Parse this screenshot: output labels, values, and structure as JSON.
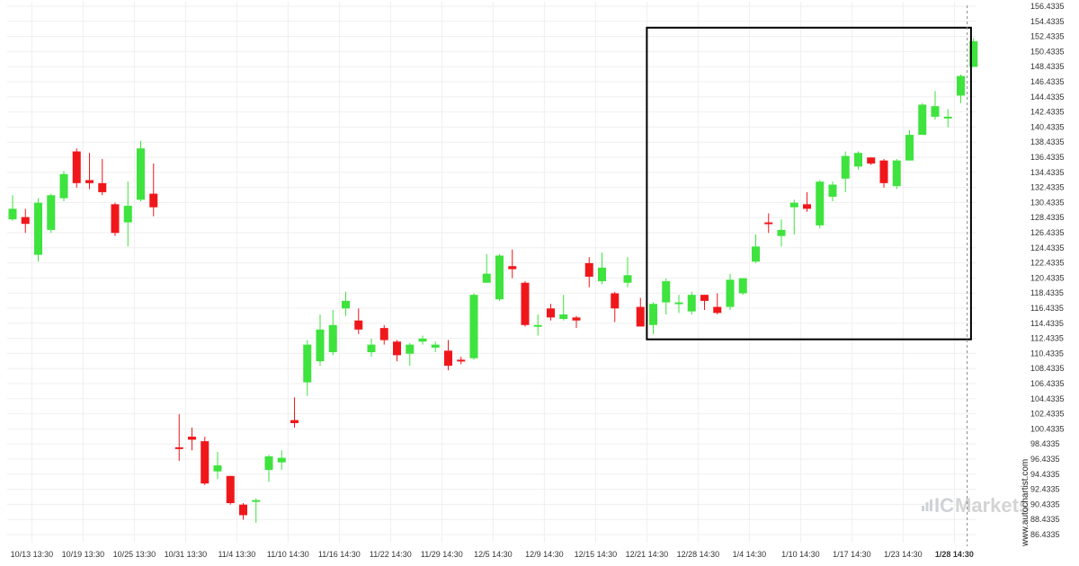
{
  "chart_data": {
    "type": "candlestick",
    "y_axis": {
      "side": "right",
      "min": 85.4335,
      "max": 157.4335,
      "tick_labels": [
        "156.4335",
        "154.4335",
        "152.4335",
        "150.4335",
        "148.4335",
        "146.4335",
        "144.4335",
        "142.4335",
        "140.4335",
        "138.4335",
        "136.4335",
        "134.4335",
        "132.4335",
        "130.4335",
        "128.4335",
        "126.4335",
        "124.4335",
        "122.4335",
        "120.4335",
        "118.4335",
        "116.4335",
        "114.4335",
        "112.4335",
        "110.4335",
        "108.4335",
        "106.4335",
        "104.4335",
        "102.4335",
        "100.4335",
        "98.4335",
        "96.4335",
        "94.4335",
        "92.4335",
        "90.4335",
        "88.4335",
        "86.4335"
      ]
    },
    "x_axis": {
      "tick_labels": [
        {
          "label": "10/13 13:30",
          "bar": 1.5,
          "bold": false
        },
        {
          "label": "10/19 13:30",
          "bar": 5.5,
          "bold": false
        },
        {
          "label": "10/25 13:30",
          "bar": 9.5,
          "bold": false
        },
        {
          "label": "10/31 13:30",
          "bar": 13.5,
          "bold": false
        },
        {
          "label": "11/4 13:30",
          "bar": 17.5,
          "bold": false
        },
        {
          "label": "11/10 14:30",
          "bar": 21.5,
          "bold": false
        },
        {
          "label": "11/16 14:30",
          "bar": 25.5,
          "bold": false
        },
        {
          "label": "11/22 14:30",
          "bar": 29.5,
          "bold": false
        },
        {
          "label": "11/29 14:30",
          "bar": 33.5,
          "bold": false
        },
        {
          "label": "12/5 14:30",
          "bar": 37.5,
          "bold": false
        },
        {
          "label": "12/9 14:30",
          "bar": 41.5,
          "bold": false
        },
        {
          "label": "12/15 14:30",
          "bar": 45.5,
          "bold": false
        },
        {
          "label": "12/21 14:30",
          "bar": 49.5,
          "bold": false
        },
        {
          "label": "12/28 14:30",
          "bar": 53.5,
          "bold": false
        },
        {
          "label": "1/4 14:30",
          "bar": 57.5,
          "bold": false
        },
        {
          "label": "1/10 14:30",
          "bar": 61.5,
          "bold": false
        },
        {
          "label": "1/17 14:30",
          "bar": 65.5,
          "bold": false
        },
        {
          "label": "1/23 14:30",
          "bar": 69.5,
          "bold": false
        },
        {
          "label": "1/28 14:30",
          "bar": 73.5,
          "bold": true
        }
      ]
    },
    "candles": [
      [
        128.2,
        129.6,
        128.0,
        131.4
      ],
      [
        128.5,
        127.6,
        126.4,
        129.6
      ],
      [
        123.5,
        130.4,
        122.6,
        131.0
      ],
      [
        126.8,
        131.4,
        126.4,
        131.6
      ],
      [
        131.0,
        134.2,
        130.6,
        134.6
      ],
      [
        137.2,
        133.0,
        132.4,
        137.6
      ],
      [
        133.4,
        133.0,
        132.2,
        137.0
      ],
      [
        133.0,
        131.8,
        131.4,
        136.2
      ],
      [
        130.2,
        126.4,
        126.0,
        130.4
      ],
      [
        127.8,
        130.0,
        124.6,
        133.2
      ],
      [
        130.8,
        137.6,
        130.6,
        138.6
      ],
      [
        131.6,
        129.8,
        128.6,
        135.6
      ],
      [
        null,
        null,
        null,
        null
      ],
      [
        98.0,
        97.8,
        96.2,
        102.4
      ],
      [
        99.4,
        99.0,
        97.6,
        100.6
      ],
      [
        98.8,
        93.2,
        93.0,
        99.4
      ],
      [
        94.8,
        95.6,
        93.8,
        97.4
      ],
      [
        94.2,
        90.6,
        90.4,
        94.2
      ],
      [
        90.4,
        89.0,
        88.4,
        90.6
      ],
      [
        90.8,
        91.0,
        88.0,
        91.2
      ],
      [
        95.0,
        96.8,
        93.4,
        97.0
      ],
      [
        96.0,
        96.6,
        95.0,
        97.6
      ],
      [
        101.6,
        101.2,
        100.6,
        104.6
      ],
      [
        106.6,
        111.6,
        104.8,
        112.2
      ],
      [
        109.4,
        113.6,
        108.8,
        115.6
      ],
      [
        110.6,
        114.2,
        110.2,
        116.2
      ],
      [
        116.4,
        117.4,
        115.4,
        118.6
      ],
      [
        114.8,
        113.6,
        113.0,
        116.4
      ],
      [
        110.6,
        111.6,
        110.0,
        112.4
      ],
      [
        113.8,
        112.2,
        111.6,
        114.2
      ],
      [
        112.0,
        110.2,
        109.4,
        112.2
      ],
      [
        110.4,
        111.6,
        108.8,
        111.8
      ],
      [
        112.0,
        112.4,
        111.6,
        112.8
      ],
      [
        111.2,
        111.6,
        110.6,
        112.0
      ],
      [
        110.8,
        108.8,
        108.2,
        112.2
      ],
      [
        109.6,
        109.4,
        109.0,
        110.0
      ],
      [
        109.8,
        118.2,
        109.6,
        118.4
      ],
      [
        119.8,
        121.0,
        119.8,
        123.6
      ],
      [
        117.6,
        123.4,
        117.4,
        123.6
      ],
      [
        122.0,
        121.6,
        120.4,
        124.2
      ],
      [
        119.8,
        114.2,
        114.0,
        120.0
      ],
      [
        114.0,
        114.2,
        112.8,
        115.6
      ],
      [
        116.4,
        115.2,
        114.8,
        117.0
      ],
      [
        115.0,
        115.6,
        114.8,
        118.2
      ],
      [
        115.2,
        114.8,
        113.8,
        115.4
      ],
      [
        122.4,
        120.6,
        119.2,
        123.2
      ],
      [
        120.0,
        121.8,
        119.6,
        123.8
      ],
      [
        118.4,
        116.4,
        114.6,
        118.6
      ],
      [
        119.8,
        120.8,
        119.2,
        123.2
      ],
      [
        116.6,
        114.0,
        114.0,
        117.8
      ],
      [
        114.2,
        117.0,
        113.0,
        117.2
      ],
      [
        117.2,
        120.0,
        115.6,
        120.4
      ],
      [
        117.2,
        117.2,
        115.8,
        118.2
      ],
      [
        116.0,
        118.2,
        115.6,
        118.6
      ],
      [
        118.2,
        117.4,
        116.2,
        118.2
      ],
      [
        116.6,
        115.8,
        115.6,
        118.4
      ],
      [
        116.6,
        120.2,
        116.2,
        121.0
      ],
      [
        118.4,
        120.4,
        118.2,
        120.4
      ],
      [
        122.6,
        124.6,
        122.4,
        126.2
      ],
      [
        127.8,
        127.6,
        126.4,
        129.0
      ],
      [
        126.0,
        126.8,
        124.6,
        128.2
      ],
      [
        129.8,
        130.4,
        126.2,
        130.8
      ],
      [
        130.2,
        129.6,
        129.2,
        131.8
      ],
      [
        127.4,
        133.2,
        127.0,
        133.4
      ],
      [
        131.2,
        132.8,
        130.6,
        133.2
      ],
      [
        133.6,
        136.6,
        131.8,
        137.2
      ],
      [
        135.2,
        137.0,
        134.8,
        137.2
      ],
      [
        136.4,
        135.6,
        135.4,
        136.4
      ],
      [
        136.0,
        133.0,
        132.4,
        136.2
      ],
      [
        132.6,
        136.0,
        132.2,
        136.2
      ],
      [
        136.0,
        139.4,
        136.0,
        140.0
      ],
      [
        139.4,
        143.4,
        139.4,
        143.6
      ],
      [
        141.8,
        143.2,
        141.4,
        145.2
      ],
      [
        141.6,
        141.8,
        140.4,
        142.8
      ],
      [
        144.6,
        147.2,
        143.6,
        147.4
      ],
      [
        148.4,
        151.8,
        148.4,
        152.2
      ]
    ],
    "colors": {
      "up": "#3ee33e",
      "down": "#f0171b",
      "grid": "#efefef",
      "highlight_box": "#000000",
      "current_time_line": "#8a8a8a",
      "background": "#ffffff"
    },
    "highlight_box": {
      "from_bar": 49.5,
      "to_bar": 74.8,
      "top": 153.6,
      "bottom": 112.3
    },
    "current_time_marker": {
      "bar": 74.5
    }
  },
  "watermark": {
    "side_text": "www.autochartist.com",
    "brand_prefix": "IC",
    "brand_suffix": "Markets",
    "logo_icon": "bars-chart-icon"
  }
}
